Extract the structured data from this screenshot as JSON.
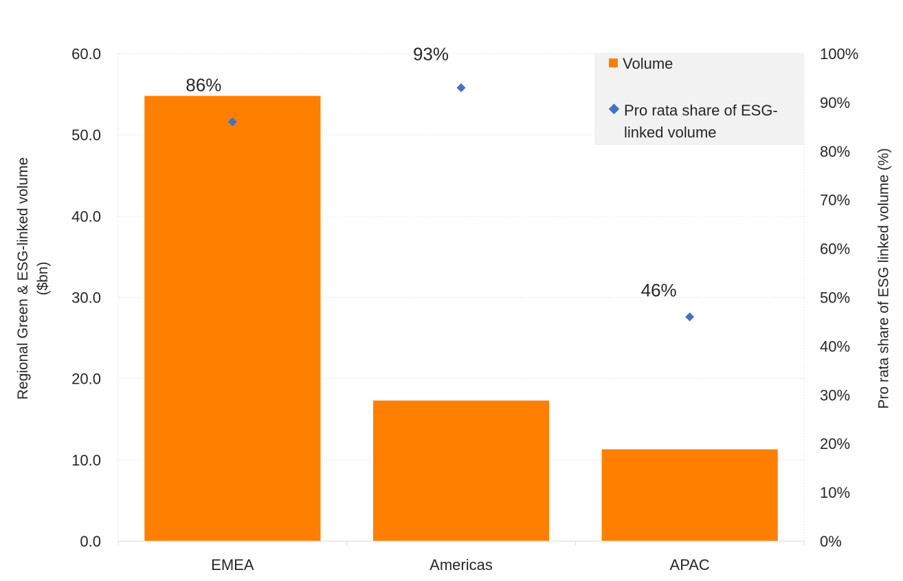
{
  "chart_data": {
    "type": "bar",
    "categories": [
      "EMEA",
      "Americas",
      "APAC"
    ],
    "series": [
      {
        "name": "Volume",
        "kind": "bar",
        "axis": "left",
        "values": [
          54.8,
          17.3,
          11.3
        ]
      },
      {
        "name": "Pro rata share of ESG-linked volume",
        "kind": "scatter",
        "axis": "right",
        "values": [
          86,
          93,
          46
        ],
        "labels": [
          "86%",
          "93%",
          "46%"
        ]
      }
    ],
    "ylabel": "Regional Green & ESG-linked volume ($bn)",
    "ylabel_right": "Pro rata share of ESG linked volume (%)",
    "ylim": [
      0,
      60
    ],
    "ylim_right": [
      0,
      100
    ],
    "y_ticks": [
      "0.0",
      "10.0",
      "20.0",
      "30.0",
      "40.0",
      "50.0",
      "60.0"
    ],
    "y_ticks_right": [
      "0%",
      "10%",
      "20%",
      "30%",
      "40%",
      "50%",
      "60%",
      "70%",
      "80%",
      "90%",
      "100%"
    ],
    "legend_position": "top-right",
    "grid": true,
    "colors": {
      "bar": "#ff8000",
      "marker": "#4472c4",
      "grid": "#e6e6e6",
      "legend_bg": "#f2f2f2"
    }
  },
  "legend": {
    "items": [
      {
        "label": "Volume"
      },
      {
        "label_line1": "Pro rata share of ESG-",
        "label_line2": "linked volume"
      }
    ]
  },
  "axis_titles": {
    "left_line1": "Regional Green & ESG-linked volume",
    "left_line2": "($bn)",
    "right": "Pro rata share of ESG linked volume (%)"
  }
}
